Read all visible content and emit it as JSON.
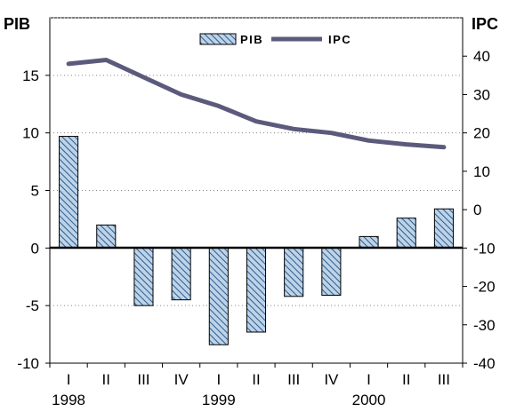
{
  "chart_data": {
    "type": "bar",
    "categories": [
      "I",
      "II",
      "III",
      "IV",
      "I",
      "II",
      "III",
      "IV",
      "I",
      "II",
      "III"
    ],
    "years": [
      {
        "label": "1998",
        "index": 0
      },
      {
        "label": "1999",
        "index": 4
      },
      {
        "label": "2000",
        "index": 8
      }
    ],
    "series": [
      {
        "name": "PIB",
        "kind": "bar",
        "axis": "left",
        "values": [
          9.7,
          2.0,
          -5.0,
          -4.5,
          -8.4,
          -7.3,
          -4.2,
          -4.1,
          1.0,
          2.6,
          3.4
        ]
      },
      {
        "name": "IPC",
        "kind": "line",
        "axis": "right",
        "values": [
          38.0,
          39.0,
          34.5,
          30.0,
          27.0,
          23.0,
          21.0,
          20.0,
          18.0,
          17.0,
          16.3
        ]
      }
    ],
    "left_axis": {
      "title": "PIB",
      "ylim": [
        -10,
        20
      ],
      "ticks": [
        -10,
        -5,
        0,
        5,
        10,
        15
      ]
    },
    "right_axis": {
      "title": "IPC",
      "ylim": [
        -40,
        50
      ],
      "ticks": [
        -40,
        -30,
        -20,
        -10,
        0,
        10,
        20,
        30,
        40
      ]
    },
    "grid": "horizontal-dotted",
    "legend": "top-center",
    "colors": {
      "bar_fill": "#bcd3e8",
      "bar_hatch": "#2f5a8c",
      "line": "#5c5a7c",
      "zero_line": "#000000"
    }
  }
}
